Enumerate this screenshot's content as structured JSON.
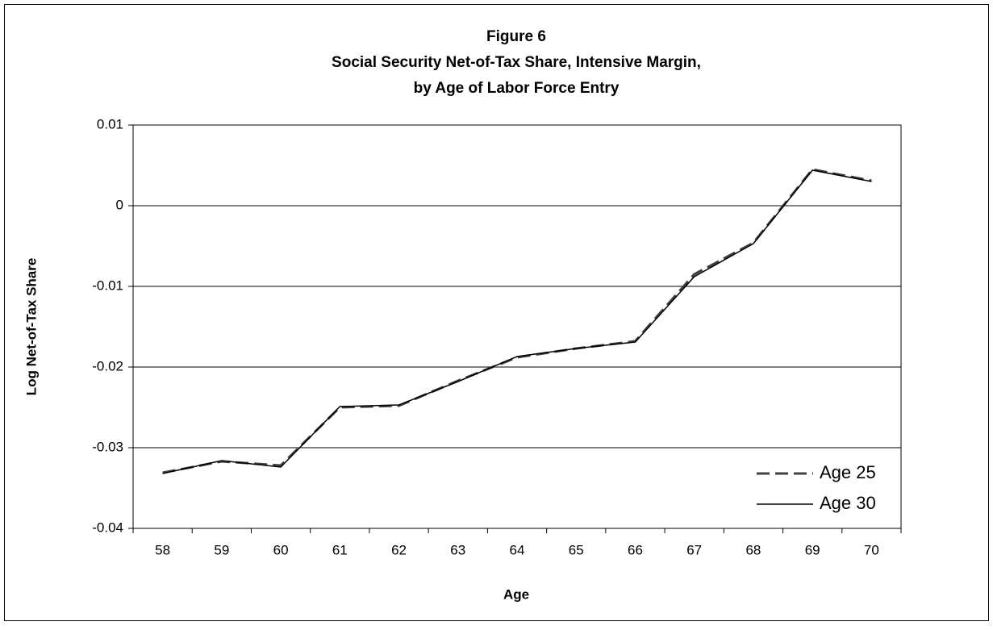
{
  "chart_data": {
    "type": "line",
    "title": [
      "Figure 6",
      "Social Security Net-of-Tax Share, Intensive Margin,",
      "by Age of Labor Force Entry"
    ],
    "x_label": "Age",
    "y_label": "Log Net-of-Tax Share",
    "categories": [
      "58",
      "59",
      "60",
      "61",
      "62",
      "63",
      "64",
      "65",
      "66",
      "67",
      "68",
      "69",
      "70"
    ],
    "series": [
      {
        "name": "Age 25",
        "color": "#404040",
        "dashed": true,
        "values": [
          -0.0331,
          -0.0317,
          -0.0322,
          -0.025,
          -0.0248,
          -0.0217,
          -0.0188,
          -0.0177,
          -0.0168,
          -0.0085,
          -0.0046,
          0.0045,
          0.0031
        ]
      },
      {
        "name": "Age 30",
        "color": "#000000",
        "dashed": false,
        "values": [
          -0.0332,
          -0.0316,
          -0.0324,
          -0.0249,
          -0.0247,
          -0.0218,
          -0.0187,
          -0.0177,
          -0.0169,
          -0.0088,
          -0.0047,
          0.0044,
          0.003
        ]
      }
    ],
    "ylim": [
      -0.04,
      0.01
    ],
    "yticks": [
      -0.04,
      -0.03,
      -0.02,
      -0.01,
      0,
      0.01
    ],
    "grid": true,
    "legend": "lower right"
  }
}
